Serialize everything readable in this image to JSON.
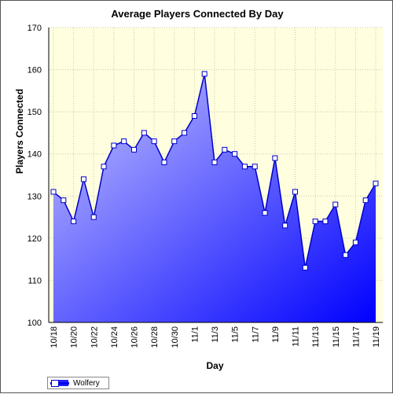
{
  "chart_data": {
    "type": "area",
    "title": "Average Players Connected By Day",
    "xlabel": "Day",
    "ylabel": "Players Connected",
    "ylim": [
      100,
      170
    ],
    "yticks": [
      100,
      110,
      120,
      130,
      140,
      150,
      160,
      170
    ],
    "grid": true,
    "legend_position": "bottom-left",
    "x": [
      "10/18",
      "10/19",
      "10/20",
      "10/21",
      "10/22",
      "10/23",
      "10/24",
      "10/25",
      "10/26",
      "10/27",
      "10/28",
      "10/29",
      "10/30",
      "10/31",
      "11/1",
      "11/2",
      "11/3",
      "11/4",
      "11/5",
      "11/6",
      "11/7",
      "11/8",
      "11/9",
      "11/10",
      "11/11",
      "11/12",
      "11/13",
      "11/14",
      "11/15",
      "11/16",
      "11/17",
      "11/18",
      "11/19"
    ],
    "xtick_labels": [
      "10/18",
      "10/20",
      "10/22",
      "10/24",
      "10/26",
      "10/28",
      "10/30",
      "11/1",
      "11/3",
      "11/5",
      "11/7",
      "11/9",
      "11/11",
      "11/13",
      "11/15",
      "11/17",
      "11/19"
    ],
    "series": [
      {
        "name": "Wolfery",
        "values": [
          131,
          129,
          124,
          134,
          125,
          137,
          142,
          143,
          141,
          145,
          143,
          138,
          143,
          145,
          149,
          159,
          138,
          141,
          140,
          137,
          137,
          126,
          139,
          123,
          131,
          113,
          124,
          124,
          128,
          116,
          119,
          129,
          133
        ]
      }
    ]
  },
  "colors": {
    "plot_background": "#ffffe0",
    "series_line": "#0000cc",
    "fill_top": "#c8c8ff",
    "fill_bottom": "#0000ff"
  }
}
